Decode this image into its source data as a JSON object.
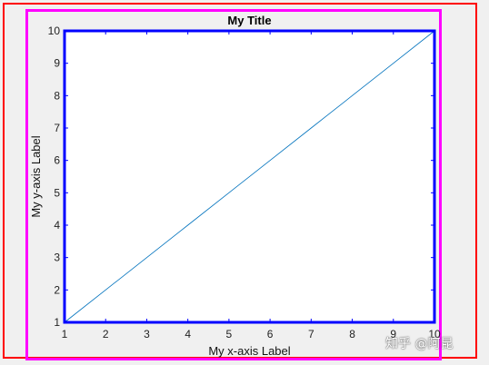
{
  "chart_data": {
    "type": "line",
    "title": "My Title",
    "xlabel": "My x-axis Label",
    "ylabel": "My y-axis Label",
    "xlim": [
      1,
      10
    ],
    "ylim": [
      1,
      10
    ],
    "xticks": [
      "1",
      "2",
      "3",
      "4",
      "5",
      "6",
      "7",
      "8",
      "9",
      "10"
    ],
    "yticks": [
      "1",
      "2",
      "3",
      "4",
      "5",
      "6",
      "7",
      "8",
      "9",
      "10"
    ],
    "grid": false,
    "series": [
      {
        "x": [
          1,
          2,
          3,
          4,
          5,
          6,
          7,
          8,
          9,
          10
        ],
        "y": [
          1,
          2,
          3,
          4,
          5,
          6,
          7,
          8,
          9,
          10
        ],
        "color": "#0072bd"
      }
    ],
    "axes_color": "#0000ff",
    "box_colors": {
      "outer": "#ff0000",
      "figure": "#ff00ff"
    }
  },
  "watermark": "知乎 @阿昆"
}
